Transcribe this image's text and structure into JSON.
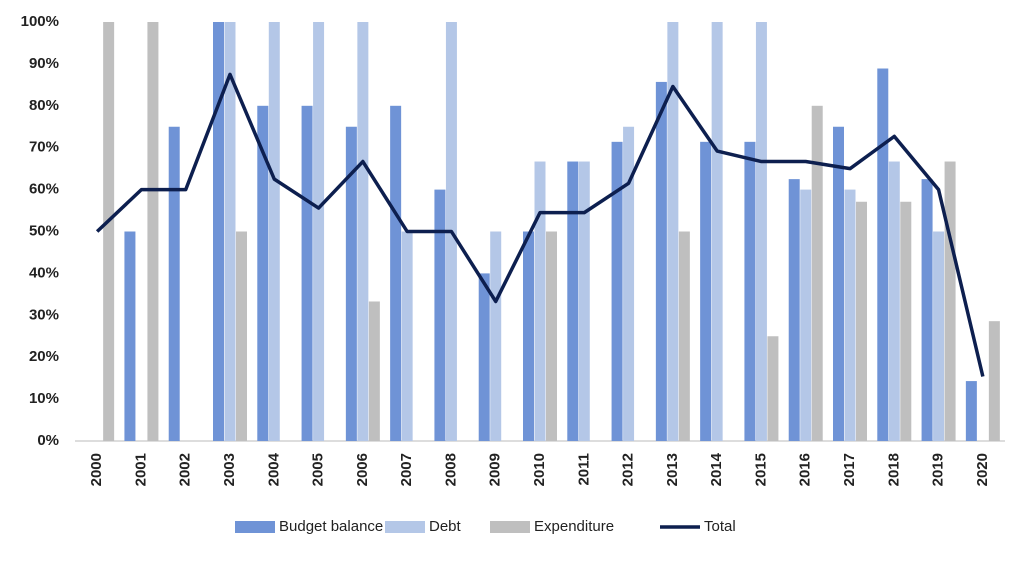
{
  "chart_data": {
    "type": "bar",
    "categories": [
      "2000",
      "2001",
      "2002",
      "2003",
      "2004",
      "2005",
      "2006",
      "2007",
      "2008",
      "2009",
      "2010",
      "2011",
      "2012",
      "2013",
      "2014",
      "2015",
      "2016",
      "2017",
      "2018",
      "2019",
      "2020"
    ],
    "series": [
      {
        "name": "Budget balance",
        "type": "bar",
        "color": "#6f93d6",
        "values": [
          null,
          50,
          75,
          100,
          80,
          80,
          75,
          80,
          60,
          40,
          50,
          66.7,
          71.4,
          85.7,
          71.4,
          71.4,
          62.5,
          75,
          88.9,
          62.5,
          14.3
        ]
      },
      {
        "name": "Debt",
        "type": "bar",
        "color": "#b4c7e7",
        "values": [
          null,
          null,
          null,
          100,
          100,
          100,
          100,
          50,
          100,
          50,
          66.7,
          66.7,
          75,
          100,
          100,
          100,
          60,
          60,
          66.7,
          50,
          null
        ]
      },
      {
        "name": "Expenditure",
        "type": "bar",
        "color": "#bfbfbf",
        "values": [
          100,
          100,
          null,
          50,
          null,
          null,
          33.3,
          null,
          null,
          null,
          50,
          null,
          null,
          50,
          null,
          25,
          80,
          57.1,
          57.1,
          66.7,
          28.6
        ]
      },
      {
        "name": "Total",
        "type": "line",
        "color": "#0d1f4f",
        "values": [
          50,
          60,
          60,
          87.5,
          62.5,
          55.6,
          66.7,
          50,
          50,
          33.3,
          54.5,
          54.5,
          61.5,
          84.6,
          69.2,
          66.7,
          66.7,
          65,
          72.7,
          60,
          15.4
        ]
      }
    ],
    "ylim": [
      0,
      100
    ],
    "yticks": [
      {
        "value": 0,
        "label": "0%"
      },
      {
        "value": 10,
        "label": "10%"
      },
      {
        "value": 20,
        "label": "20%"
      },
      {
        "value": 30,
        "label": "30%"
      },
      {
        "value": 40,
        "label": "40%"
      },
      {
        "value": 50,
        "label": "50%"
      },
      {
        "value": 60,
        "label": "60%"
      },
      {
        "value": 70,
        "label": "70%"
      },
      {
        "value": 80,
        "label": "80%"
      },
      {
        "value": 90,
        "label": "90%"
      },
      {
        "value": 100,
        "label": "100%"
      }
    ],
    "legend": "bottom"
  }
}
